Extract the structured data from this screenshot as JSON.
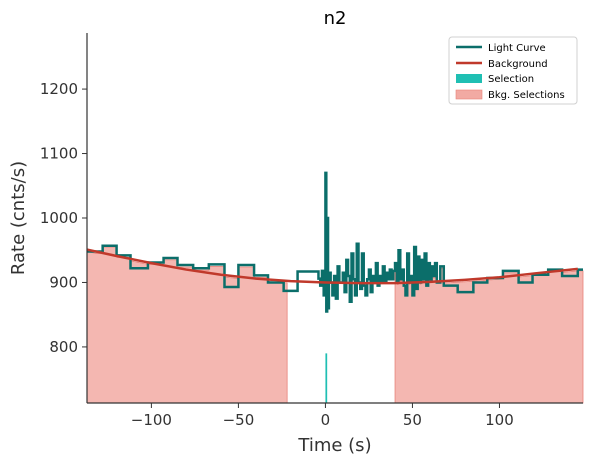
{
  "chart_data": {
    "type": "line",
    "title": "n2",
    "xlabel": "Time (s)",
    "ylabel": "Rate (cnts/s)",
    "xlim": [
      -137,
      148
    ],
    "ylim": [
      713,
      1287
    ],
    "xticks": [
      -100,
      -50,
      0,
      50,
      100
    ],
    "xtick_labels": [
      "−100",
      "−50",
      "0",
      "50",
      "100"
    ],
    "yticks": [
      800,
      900,
      1000,
      1100,
      1200
    ],
    "ytick_labels": [
      "800",
      "900",
      "1000",
      "1100",
      "1200"
    ],
    "grid": false,
    "legend_position": "top-right",
    "legend": [
      {
        "label": "Light Curve",
        "kind": "line",
        "color": "#0b6e6a"
      },
      {
        "label": "Background",
        "kind": "line",
        "color": "#c0392b"
      },
      {
        "label": "Selection",
        "kind": "patch",
        "color": "#1fbfb3"
      },
      {
        "label": "Bkg. Selections",
        "kind": "patch",
        "color": "#f2aaa3"
      }
    ],
    "series": [
      {
        "name": "Light Curve",
        "style": "step",
        "color": "#0b6e6a",
        "x": [
          -137,
          -128,
          -120,
          -112,
          -102,
          -93,
          -85,
          -76,
          -67,
          -58,
          -50,
          -41,
          -33,
          -24,
          -16,
          -8,
          -4,
          -3,
          -2,
          -1,
          0,
          0.5,
          1,
          1.5,
          2,
          3,
          4,
          5,
          6,
          7,
          8,
          9,
          10,
          11,
          12,
          13,
          14,
          15,
          16,
          17,
          18,
          19,
          20,
          21,
          22,
          23,
          24,
          25,
          26,
          27,
          28,
          29,
          30,
          31,
          32,
          33,
          34,
          35,
          36,
          37,
          38,
          39,
          40,
          41,
          42,
          43,
          44,
          45,
          46,
          47,
          48,
          49,
          50,
          51,
          52,
          53,
          54,
          55,
          56,
          57,
          58,
          59,
          60,
          61,
          62,
          63,
          64,
          66,
          68,
          76,
          85,
          93,
          102,
          111,
          119,
          128,
          136,
          145
        ],
        "y": [
          948,
          957,
          942,
          922,
          931,
          938,
          927,
          922,
          928,
          893,
          927,
          911,
          900,
          887,
          917,
          917,
          906,
          895,
          918,
          880,
          1070,
          855,
          1000,
          860,
          915,
          900,
          880,
          910,
          875,
          925,
          900,
          900,
          915,
          885,
          935,
          910,
          870,
          945,
          905,
          880,
          960,
          900,
          890,
          945,
          895,
          880,
          905,
          920,
          885,
          910,
          900,
          930,
          895,
          910,
          900,
          925,
          900,
          915,
          905,
          920,
          905,
          918,
          930,
          900,
          950,
          905,
          920,
          895,
          880,
          945,
          900,
          910,
          880,
          955,
          890,
          940,
          900,
          935,
          905,
          945,
          895,
          930,
          905,
          925,
          910,
          930,
          900,
          925,
          895,
          885,
          900,
          907,
          918,
          900,
          912,
          920,
          910,
          920
        ]
      },
      {
        "name": "Background",
        "style": "line",
        "color": "#c0392b",
        "x": [
          -137,
          -120,
          -100,
          -80,
          -60,
          -40,
          -20,
          0,
          20,
          40,
          60,
          80,
          100,
          120,
          145
        ],
        "y": [
          951,
          941,
          930,
          920,
          912,
          906,
          902,
          900,
          899,
          899,
          901,
          904,
          908,
          914,
          921
        ]
      }
    ],
    "selection": {
      "x_range": [
        0,
        1
      ],
      "color": "#1fbfb3"
    },
    "bkg_selections": [
      {
        "x_range": [
          -137,
          -22
        ]
      },
      {
        "x_range": [
          40,
          148
        ]
      }
    ]
  }
}
